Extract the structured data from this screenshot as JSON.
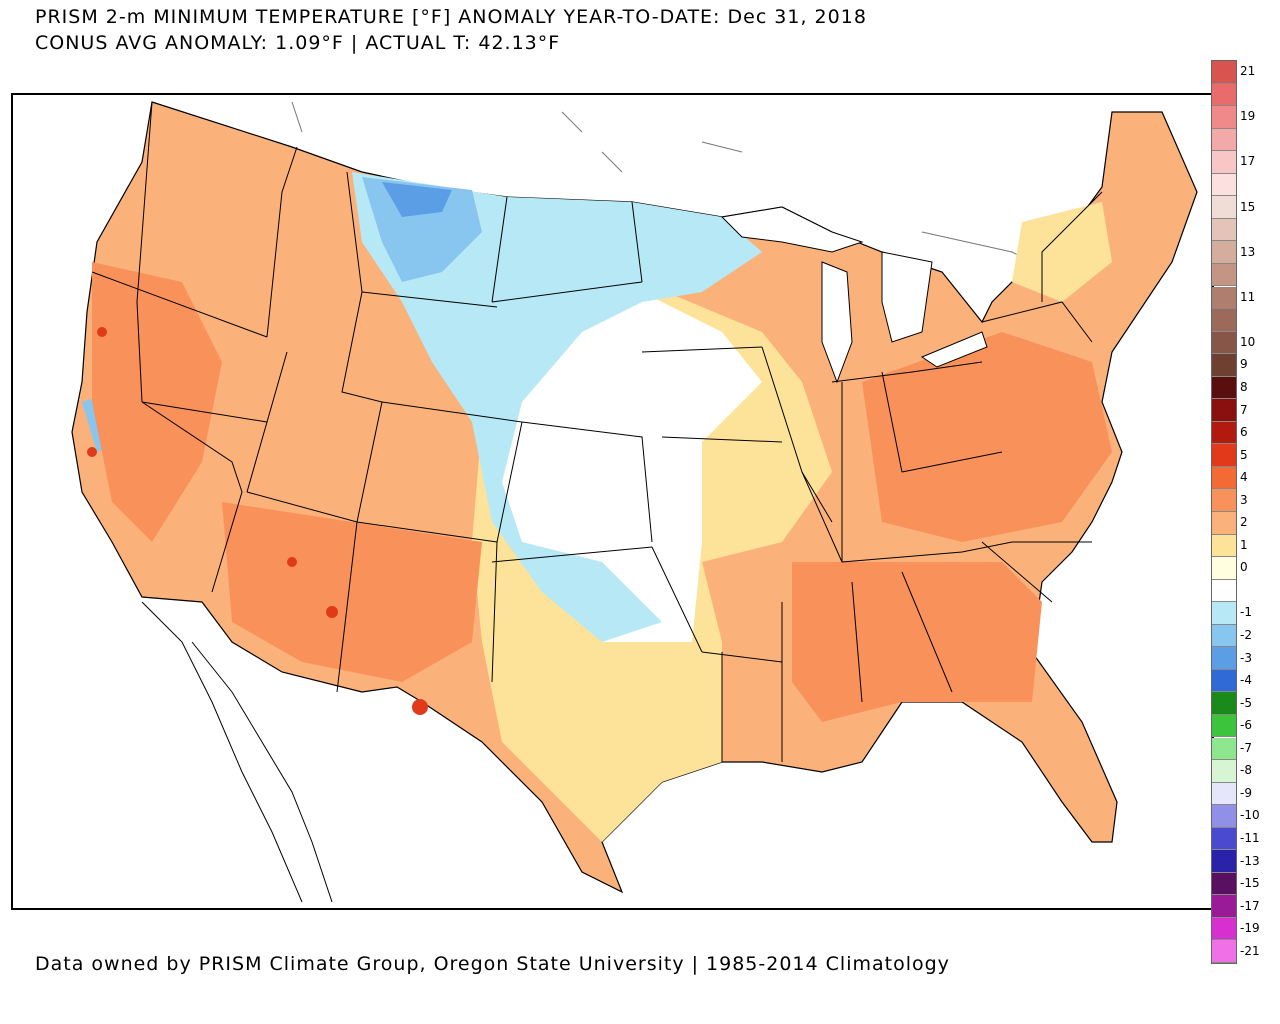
{
  "title": {
    "line1": "PRISM 2-m MINIMUM TEMPERATURE [°F] ANOMALY YEAR-TO-DATE: Dec 31, 2018",
    "line2": "CONUS AVG ANOMALY: 1.09°F | ACTUAL T: 42.13°F"
  },
  "footer": "Data owned by PRISM Climate Group, Oregon State University | 1985-2014 Climatology",
  "legend": {
    "bins": [
      {
        "label": "21",
        "color": "#d9534f"
      },
      {
        "label": "",
        "color": "#e96b6b"
      },
      {
        "label": "19",
        "color": "#f08a8a"
      },
      {
        "label": "",
        "color": "#f4a9a9"
      },
      {
        "label": "17",
        "color": "#f8c6c6"
      },
      {
        "label": "",
        "color": "#fbe0e0"
      },
      {
        "label": "15",
        "color": "#f0ded6"
      },
      {
        "label": "",
        "color": "#e3c4b8"
      },
      {
        "label": "13",
        "color": "#d4ad9e"
      },
      {
        "label": "",
        "color": "#c49585"
      },
      {
        "label": "11",
        "color": "#b07e6e"
      },
      {
        "label": "",
        "color": "#9c6a5b"
      },
      {
        "label": "10",
        "color": "#875648"
      },
      {
        "label": "9",
        "color": "#6e4032"
      },
      {
        "label": "8",
        "color": "#5a0f0f"
      },
      {
        "label": "7",
        "color": "#8a1010"
      },
      {
        "label": "6",
        "color": "#b21a0e"
      },
      {
        "label": "5",
        "color": "#e03a1a"
      },
      {
        "label": "4",
        "color": "#f46a34"
      },
      {
        "label": "3",
        "color": "#f9915a"
      },
      {
        "label": "2",
        "color": "#fbb27a"
      },
      {
        "label": "1",
        "color": "#fde39a"
      },
      {
        "label": "0",
        "color": "#ffffe0"
      },
      {
        "label": "",
        "color": "#ffffff"
      },
      {
        "label": "-1",
        "color": "#b6e8f5"
      },
      {
        "label": "-2",
        "color": "#88c6f0"
      },
      {
        "label": "-3",
        "color": "#5c9ee6"
      },
      {
        "label": "-4",
        "color": "#2f6bd6"
      },
      {
        "label": "-5",
        "color": "#1a8a1a"
      },
      {
        "label": "-6",
        "color": "#3cc43c"
      },
      {
        "label": "-7",
        "color": "#8ee68e"
      },
      {
        "label": "-8",
        "color": "#d7f5d2"
      },
      {
        "label": "-9",
        "color": "#e6e6fa"
      },
      {
        "label": "-10",
        "color": "#9090e8"
      },
      {
        "label": "-11",
        "color": "#4a4ad0"
      },
      {
        "label": "-13",
        "color": "#2a22a8"
      },
      {
        "label": "-15",
        "color": "#5a1060"
      },
      {
        "label": "-17",
        "color": "#9a1a98"
      },
      {
        "label": "-19",
        "color": "#d830d0"
      },
      {
        "label": "-21",
        "color": "#f070e8"
      }
    ]
  },
  "map": {
    "colors": {
      "background": "#ffffff",
      "anomaly_plus3": "#f9915a",
      "anomaly_plus2": "#fbb27a",
      "anomaly_plus1": "#fde39a",
      "anomaly_zero": "#ffffff",
      "anomaly_minus1": "#b6e8f5",
      "anomaly_minus2": "#88c6f0",
      "anomaly_minus3": "#5c9ee6",
      "hot_spot": "#e03a1a"
    }
  }
}
